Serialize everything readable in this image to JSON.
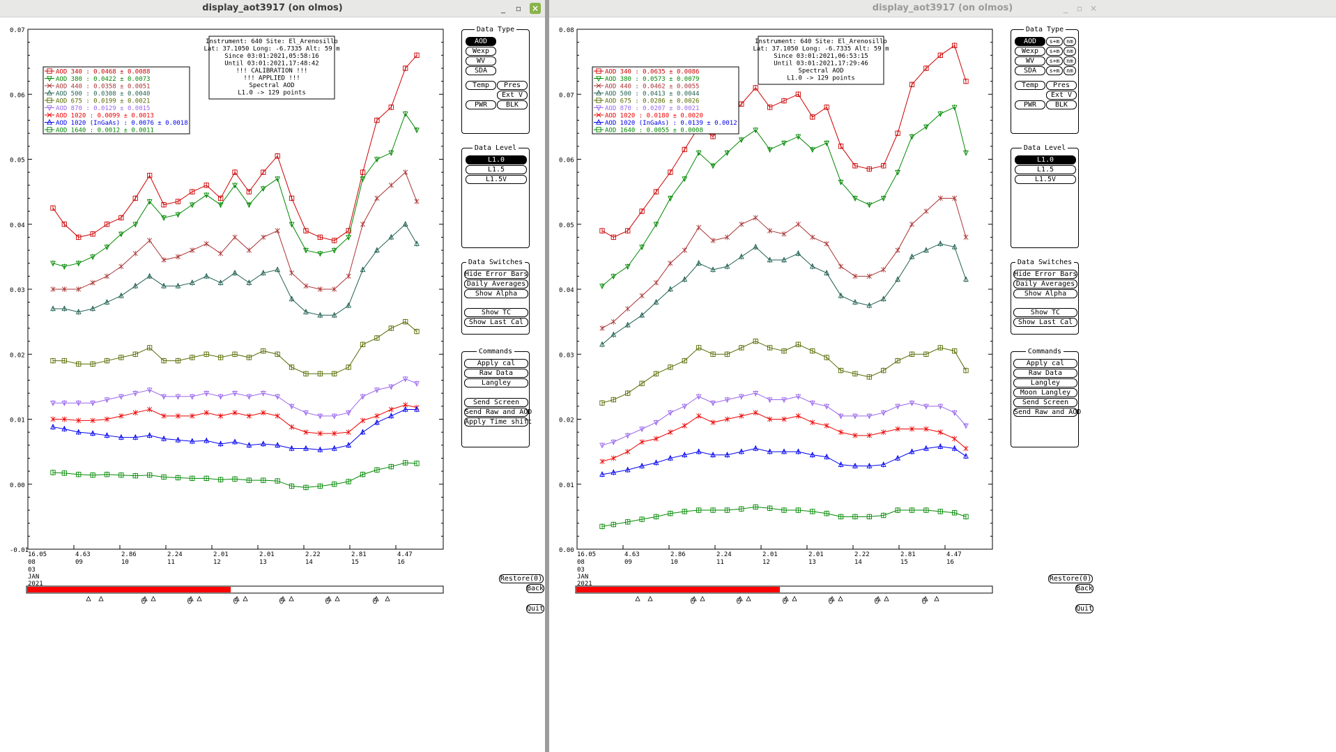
{
  "windows": [
    {
      "title": "display_aot3917 (on olmos)",
      "active": true,
      "y_ticks": [
        "0.07",
        "0.06",
        "0.05",
        "0.04",
        "0.03",
        "0.02",
        "0.01",
        "0.00",
        "-0.01"
      ],
      "y_min": -0.01,
      "y_max": 0.07,
      "x_top": [
        "16.05",
        "4.63",
        "2.86",
        "2.24",
        "2.01",
        "2.01",
        "2.22",
        "2.81",
        "4.47"
      ],
      "x_bot": [
        "08",
        "09",
        "10",
        "11",
        "12",
        "13",
        "14",
        "15",
        "16"
      ],
      "x_extra": [
        "03",
        "JAN",
        "2021"
      ],
      "info": [
        "Instrument: 640 Site: El_Arenosillo",
        "Lat: 37.1050 Long: -6.7335 Alt: 59 m",
        "Since 03:01:2021,05:58:16",
        "Until 03:01:2021,17:48:42",
        "!!! CALIBRATION !!!",
        "!!!   APPLIED   !!!",
        "Spectral AOD",
        "L1.0 -> 129 points"
      ],
      "legend": [
        {
          "label": "AOD 340   : 0.0468 ± 0.0088",
          "color": "#cc0000",
          "marker": "square"
        },
        {
          "label": "AOD 380   : 0.0422 ± 0.0073",
          "color": "#008800",
          "marker": "tridown"
        },
        {
          "label": "AOD 440   : 0.0358 ± 0.0051",
          "color": "#aa3333",
          "marker": "x"
        },
        {
          "label": "AOD 500   : 0.0308 ± 0.0040",
          "color": "#1f5f50",
          "marker": "triup"
        },
        {
          "label": "AOD 675   : 0.0199 ± 0.0021",
          "color": "#556b00",
          "marker": "square"
        },
        {
          "label": "AOD 870   : 0.0129 ± 0.0015",
          "color": "#9966ee",
          "marker": "tridown"
        },
        {
          "label": "AOD 1020  : 0.0099 ± 0.0013",
          "color": "#ee0000",
          "marker": "x"
        },
        {
          "label": "AOD 1020 (InGaAs)  : 0.0076 ± 0.0018",
          "color": "#0000ee",
          "marker": "triup"
        },
        {
          "label": "AOD 1640  : 0.0012 ± 0.0011",
          "color": "#008800",
          "marker": "square"
        }
      ],
      "chart_data": {
        "type": "line",
        "title": "",
        "xlabel": "",
        "ylabel": "",
        "ylim": [
          -0.01,
          0.07
        ],
        "x": [
          1,
          5,
          10,
          15,
          20,
          25,
          30,
          35,
          40,
          45,
          50,
          55,
          60,
          65,
          70,
          75,
          80,
          85,
          90,
          95,
          100,
          105,
          110,
          115,
          120,
          125,
          129
        ],
        "series": [
          {
            "name": "AOD 340",
            "values": [
              0.0425,
              0.04,
              0.038,
              0.0385,
              0.04,
              0.041,
              0.044,
              0.0475,
              0.043,
              0.0435,
              0.045,
              0.046,
              0.044,
              0.048,
              0.045,
              0.048,
              0.0505,
              0.044,
              0.039,
              0.038,
              0.0375,
              0.039,
              0.048,
              0.056,
              0.058,
              0.064,
              0.066
            ]
          },
          {
            "name": "AOD 380",
            "values": [
              0.034,
              0.0335,
              0.034,
              0.035,
              0.0365,
              0.0385,
              0.04,
              0.0435,
              0.041,
              0.0415,
              0.043,
              0.0445,
              0.043,
              0.046,
              0.043,
              0.0455,
              0.047,
              0.04,
              0.036,
              0.0355,
              0.036,
              0.038,
              0.047,
              0.05,
              0.051,
              0.057,
              0.0545
            ]
          },
          {
            "name": "AOD 440",
            "values": [
              0.03,
              0.03,
              0.03,
              0.031,
              0.032,
              0.0335,
              0.0355,
              0.0375,
              0.0345,
              0.035,
              0.036,
              0.037,
              0.0355,
              0.038,
              0.036,
              0.038,
              0.039,
              0.0325,
              0.0305,
              0.03,
              0.03,
              0.032,
              0.04,
              0.044,
              0.046,
              0.048,
              0.0435
            ]
          },
          {
            "name": "AOD 500",
            "values": [
              0.027,
              0.027,
              0.0265,
              0.027,
              0.028,
              0.029,
              0.0305,
              0.032,
              0.0305,
              0.0305,
              0.031,
              0.032,
              0.031,
              0.0325,
              0.031,
              0.0325,
              0.033,
              0.0285,
              0.0265,
              0.026,
              0.026,
              0.0275,
              0.033,
              0.036,
              0.038,
              0.04,
              0.037
            ]
          },
          {
            "name": "AOD 675",
            "values": [
              0.019,
              0.019,
              0.0185,
              0.0185,
              0.019,
              0.0195,
              0.02,
              0.021,
              0.019,
              0.019,
              0.0195,
              0.02,
              0.0195,
              0.02,
              0.0195,
              0.0205,
              0.02,
              0.018,
              0.017,
              0.017,
              0.017,
              0.018,
              0.0215,
              0.0225,
              0.024,
              0.025,
              0.0235
            ]
          },
          {
            "name": "AOD 870",
            "values": [
              0.0125,
              0.0125,
              0.0125,
              0.0125,
              0.013,
              0.0135,
              0.014,
              0.0145,
              0.0135,
              0.0135,
              0.0135,
              0.014,
              0.0135,
              0.014,
              0.0135,
              0.014,
              0.0135,
              0.012,
              0.011,
              0.0105,
              0.0105,
              0.011,
              0.0135,
              0.0145,
              0.015,
              0.0162,
              0.0155
            ]
          },
          {
            "name": "AOD 1020",
            "values": [
              0.01,
              0.01,
              0.0098,
              0.0098,
              0.01,
              0.0105,
              0.011,
              0.0115,
              0.0105,
              0.0105,
              0.0105,
              0.011,
              0.0105,
              0.011,
              0.0105,
              0.011,
              0.0105,
              0.0088,
              0.008,
              0.0078,
              0.0078,
              0.008,
              0.0098,
              0.0105,
              0.0115,
              0.0122,
              0.0118
            ]
          },
          {
            "name": "AOD 1020 (InGaAs)",
            "values": [
              0.0088,
              0.0085,
              0.008,
              0.0078,
              0.0075,
              0.0072,
              0.0072,
              0.0075,
              0.007,
              0.0068,
              0.0066,
              0.0067,
              0.0062,
              0.0065,
              0.006,
              0.0062,
              0.006,
              0.0055,
              0.0055,
              0.0053,
              0.0055,
              0.006,
              0.008,
              0.0095,
              0.0105,
              0.0115,
              0.0115
            ]
          },
          {
            "name": "AOD 1640",
            "values": [
              0.0018,
              0.0017,
              0.0015,
              0.0014,
              0.0015,
              0.0014,
              0.0013,
              0.0014,
              0.0011,
              0.001,
              0.0009,
              0.0009,
              0.0007,
              0.0008,
              0.0006,
              0.0006,
              0.0005,
              -0.0003,
              -0.0005,
              -0.0003,
              0.0,
              0.0004,
              0.0015,
              0.0022,
              0.0027,
              0.0033,
              0.0032
            ]
          }
        ]
      },
      "panels": {
        "data_type": {
          "title": "Data Type",
          "buttons": [
            "AOD",
            "Wexp",
            "WV",
            "SDA",
            "Temp",
            "Pres",
            "Ext V",
            "PWR",
            "BLK"
          ]
        },
        "data_level": {
          "title": "Data Level",
          "buttons": [
            "L1.0",
            "L1.5",
            "L1.5V"
          ]
        },
        "switches": {
          "title": "Data Switches",
          "buttons": [
            "Hide Error Bars",
            "Daily Averages",
            "Show Alpha",
            "Show TC",
            "Show Last Cal"
          ]
        },
        "commands": {
          "title": "Commands",
          "buttons": [
            "Apply cal",
            "Raw Data",
            "Langley",
            "Send Screen",
            "Send Raw and AOD",
            "Apply Time shift"
          ]
        }
      },
      "restore": "Restore(0)",
      "back": "Back",
      "quit": "Quit",
      "progress": 0.49
    },
    {
      "title": "display_aot3917 (on olmos)",
      "active": false,
      "y_ticks": [
        "0.08",
        "0.07",
        "0.06",
        "0.05",
        "0.04",
        "0.03",
        "0.02",
        "0.01",
        "0.00"
      ],
      "y_min": 0.0,
      "y_max": 0.08,
      "x_top": [
        "16.05",
        "4.63",
        "2.86",
        "2.24",
        "2.01",
        "2.01",
        "2.22",
        "2.81",
        "4.47"
      ],
      "x_bot": [
        "08",
        "09",
        "10",
        "11",
        "12",
        "13",
        "14",
        "15",
        "16"
      ],
      "x_extra": [
        "03",
        "JAN",
        "2021"
      ],
      "info": [
        "Instrument: 640 Site: El_Arenosillo",
        "Lat: 37.1050 Long: -6.7335 Alt: 59 m",
        "Since 03:01:2021,06:53:15",
        "Until 03:01:2021,17:29:46",
        "Spectral AOD",
        "L1.0 -> 129 points"
      ],
      "legend": [
        {
          "label": "AOD 340   : 0.0635 ± 0.0086",
          "color": "#cc0000",
          "marker": "square"
        },
        {
          "label": "AOD 380   : 0.0573 ± 0.0079",
          "color": "#008800",
          "marker": "tridown"
        },
        {
          "label": "AOD 440   : 0.0462 ± 0.0055",
          "color": "#aa3333",
          "marker": "x"
        },
        {
          "label": "AOD 500   : 0.0413 ± 0.0044",
          "color": "#1f5f50",
          "marker": "triup"
        },
        {
          "label": "AOD 675   : 0.0286 ± 0.0026",
          "color": "#556b00",
          "marker": "square"
        },
        {
          "label": "AOD 870   : 0.0207 ± 0.0021",
          "color": "#9966ee",
          "marker": "tridown"
        },
        {
          "label": "AOD 1020  : 0.0180 ± 0.0020",
          "color": "#ee0000",
          "marker": "x"
        },
        {
          "label": "AOD 1020 (InGaAs)  : 0.0139 ± 0.0012",
          "color": "#0000ee",
          "marker": "triup"
        },
        {
          "label": "AOD 1640  : 0.0055 ± 0.0008",
          "color": "#008800",
          "marker": "square"
        }
      ],
      "chart_data": {
        "type": "line",
        "title": "",
        "xlabel": "",
        "ylabel": "",
        "ylim": [
          0.0,
          0.08
        ],
        "x": [
          1,
          5,
          10,
          15,
          20,
          25,
          30,
          35,
          40,
          45,
          50,
          55,
          60,
          65,
          70,
          75,
          80,
          85,
          90,
          95,
          100,
          105,
          110,
          115,
          120,
          125,
          129
        ],
        "series": [
          {
            "name": "AOD 340",
            "values": [
              0.049,
              0.048,
              0.049,
              0.052,
              0.055,
              0.058,
              0.0615,
              0.065,
              0.0635,
              0.066,
              0.0685,
              0.071,
              0.068,
              0.069,
              0.07,
              0.0665,
              0.068,
              0.062,
              0.059,
              0.0585,
              0.059,
              0.064,
              0.0715,
              0.074,
              0.076,
              0.0775,
              0.072
            ]
          },
          {
            "name": "AOD 380",
            "values": [
              0.0405,
              0.042,
              0.0435,
              0.0465,
              0.05,
              0.054,
              0.057,
              0.061,
              0.059,
              0.061,
              0.063,
              0.0645,
              0.0615,
              0.0625,
              0.0635,
              0.0615,
              0.0625,
              0.0565,
              0.054,
              0.053,
              0.054,
              0.058,
              0.0635,
              0.065,
              0.067,
              0.068,
              0.061
            ]
          },
          {
            "name": "AOD 440",
            "values": [
              0.034,
              0.035,
              0.037,
              0.039,
              0.041,
              0.044,
              0.046,
              0.0495,
              0.0475,
              0.048,
              0.05,
              0.051,
              0.049,
              0.0485,
              0.05,
              0.048,
              0.047,
              0.0435,
              0.042,
              0.042,
              0.043,
              0.046,
              0.05,
              0.052,
              0.054,
              0.054,
              0.048
            ]
          },
          {
            "name": "AOD 500",
            "values": [
              0.0315,
              0.033,
              0.0345,
              0.036,
              0.038,
              0.04,
              0.0415,
              0.044,
              0.043,
              0.0435,
              0.045,
              0.0465,
              0.0445,
              0.0445,
              0.0455,
              0.0435,
              0.0425,
              0.039,
              0.038,
              0.0375,
              0.0385,
              0.0415,
              0.045,
              0.046,
              0.047,
              0.0465,
              0.0415
            ]
          },
          {
            "name": "AOD 675",
            "values": [
              0.0225,
              0.023,
              0.024,
              0.0255,
              0.027,
              0.028,
              0.029,
              0.031,
              0.03,
              0.03,
              0.031,
              0.032,
              0.031,
              0.0305,
              0.0315,
              0.0305,
              0.0295,
              0.0275,
              0.027,
              0.0265,
              0.0275,
              0.029,
              0.03,
              0.03,
              0.031,
              0.0305,
              0.0275
            ]
          },
          {
            "name": "AOD 870",
            "values": [
              0.016,
              0.0165,
              0.0175,
              0.0185,
              0.0195,
              0.021,
              0.022,
              0.0235,
              0.0225,
              0.023,
              0.0235,
              0.024,
              0.023,
              0.023,
              0.0235,
              0.0225,
              0.022,
              0.0205,
              0.0205,
              0.0205,
              0.021,
              0.022,
              0.0225,
              0.022,
              0.022,
              0.021,
              0.019
            ]
          },
          {
            "name": "AOD 1020",
            "values": [
              0.0135,
              0.014,
              0.015,
              0.0165,
              0.017,
              0.018,
              0.019,
              0.0205,
              0.0195,
              0.02,
              0.0205,
              0.021,
              0.02,
              0.02,
              0.0205,
              0.0195,
              0.019,
              0.018,
              0.0175,
              0.0175,
              0.018,
              0.0185,
              0.0185,
              0.0185,
              0.018,
              0.017,
              0.0155
            ]
          },
          {
            "name": "AOD 1020 (InGaAs)",
            "values": [
              0.0115,
              0.0118,
              0.0122,
              0.0128,
              0.0133,
              0.014,
              0.0145,
              0.015,
              0.0145,
              0.0145,
              0.015,
              0.0155,
              0.015,
              0.015,
              0.015,
              0.0145,
              0.0142,
              0.013,
              0.0128,
              0.0128,
              0.013,
              0.014,
              0.015,
              0.0155,
              0.0158,
              0.0155,
              0.0143
            ]
          },
          {
            "name": "AOD 1640",
            "values": [
              0.0035,
              0.0038,
              0.0042,
              0.0046,
              0.005,
              0.0055,
              0.0058,
              0.006,
              0.006,
              0.006,
              0.0062,
              0.0065,
              0.0063,
              0.006,
              0.006,
              0.0058,
              0.0055,
              0.005,
              0.005,
              0.005,
              0.0052,
              0.006,
              0.006,
              0.006,
              0.0058,
              0.0056,
              0.005
            ]
          }
        ]
      },
      "panels": {
        "data_type": {
          "title": "Data Type",
          "buttons": [
            "AOD",
            "Wexp",
            "WV",
            "SDA",
            "Temp",
            "Pres",
            "Ext V",
            "PWR",
            "BLK"
          ],
          "small": [
            "s+m",
            "nm"
          ]
        },
        "data_level": {
          "title": "Data Level",
          "buttons": [
            "L1.0",
            "L1.5",
            "L1.5V"
          ]
        },
        "switches": {
          "title": "Data Switches",
          "buttons": [
            "Hide Error Bars",
            "Daily Averages",
            "Show Alpha",
            "Show TC",
            "Show Last Cal"
          ]
        },
        "commands": {
          "title": "Commands",
          "buttons": [
            "Apply cal",
            "Raw Data",
            "Langley",
            "Moon Langley",
            "Send Screen",
            "Send Raw and AOD"
          ]
        }
      },
      "restore": "Restore(0)",
      "back": "Back",
      "quit": "Quit",
      "progress": 0.49
    }
  ]
}
